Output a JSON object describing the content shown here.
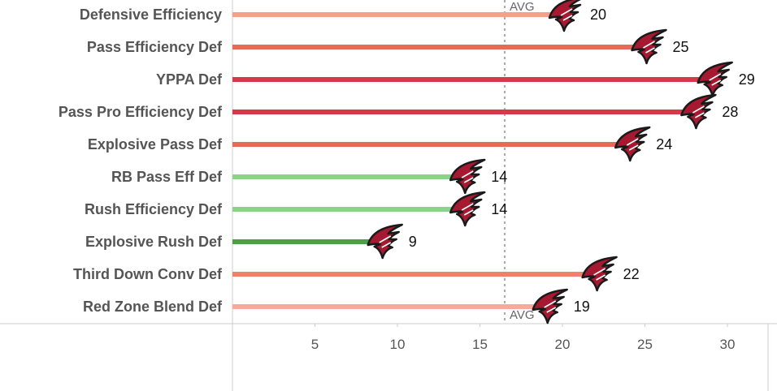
{
  "chart_data": {
    "type": "bar",
    "orientation": "horizontal",
    "categories": [
      "Defensive Efficiency",
      "Pass Efficiency Def",
      "YPPA Def",
      "Pass Pro Efficiency Def",
      "Explosive Pass Def",
      "RB Pass Eff Def",
      "Rush Efficiency Def",
      "Explosive Rush Def",
      "Third Down Conv Def",
      "Red Zone Blend Def"
    ],
    "values": [
      20,
      25,
      29,
      28,
      24,
      14,
      14,
      9,
      22,
      19
    ],
    "bar_colors": [
      "#f4a08c",
      "#e8685a",
      "#d43a4a",
      "#d43a4a",
      "#e8685a",
      "#8fd18a",
      "#8fd18a",
      "#4f9e4c",
      "#f07f6e",
      "#f7a99a"
    ],
    "marker_icon": "falcons-logo-icon",
    "xlim": [
      0,
      33
    ],
    "xticks": [
      5,
      10,
      15,
      20,
      25,
      30
    ],
    "reference_line": {
      "label": "AVG",
      "value": 16.5
    },
    "grid": false
  }
}
